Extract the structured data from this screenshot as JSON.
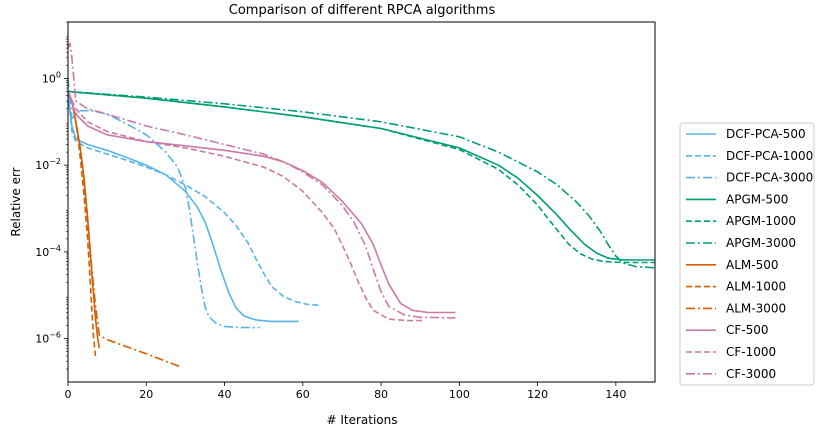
{
  "chart_data": {
    "type": "line",
    "title": "Comparison of different RPCA algorithms",
    "xlabel": "# Iterations",
    "ylabel": "Relative err",
    "xlim": [
      0,
      150
    ],
    "ylim": [
      1e-07,
      20
    ],
    "yscale": "log",
    "x_ticks": [
      0,
      20,
      40,
      60,
      80,
      100,
      120,
      140
    ],
    "y_ticks": [
      1,
      0.01,
      0.0001,
      1e-06
    ],
    "y_tick_labels": [
      "10^0",
      "10^-2",
      "10^-4",
      "10^-6"
    ],
    "grid": false,
    "legend_position": "outside-right",
    "series": [
      {
        "name": "DCF-PCA-500",
        "color": "#56B4E9",
        "dash": "solid",
        "x": [
          0,
          1,
          2,
          5,
          10,
          15,
          20,
          25,
          30,
          33,
          35,
          37,
          39,
          41,
          43,
          45,
          48,
          52,
          59
        ],
        "y": [
          0.4,
          0.08,
          0.04,
          0.03,
          0.022,
          0.015,
          0.01,
          0.006,
          0.0025,
          0.0011,
          0.0005,
          0.00015,
          4e-05,
          1.2e-05,
          5e-06,
          3.3e-06,
          2.7e-06,
          2.5e-06,
          2.5e-06
        ]
      },
      {
        "name": "DCF-PCA-1000",
        "color": "#56B4E9",
        "dash": "dashed",
        "x": [
          0,
          1,
          2,
          5,
          10,
          15,
          20,
          25,
          30,
          35,
          40,
          43,
          46,
          48,
          50,
          52,
          55,
          58,
          61,
          64
        ],
        "y": [
          0.5,
          0.06,
          0.035,
          0.025,
          0.018,
          0.013,
          0.009,
          0.006,
          0.0035,
          0.0019,
          0.0008,
          0.0004,
          0.00016,
          7e-05,
          3.2e-05,
          1.6e-05,
          9.5e-06,
          7.2e-06,
          6.2e-06,
          5.9e-06
        ]
      },
      {
        "name": "DCF-PCA-3000",
        "color": "#56B4E9",
        "dash": "dashdot",
        "x": [
          0,
          1,
          3,
          6,
          10,
          15,
          20,
          25,
          28,
          30,
          31,
          32,
          33,
          34,
          35,
          36,
          38,
          40,
          44,
          49
        ],
        "y": [
          1.0,
          0.12,
          0.18,
          0.18,
          0.15,
          0.09,
          0.05,
          0.02,
          0.009,
          0.003,
          0.001,
          0.00025,
          6e-05,
          1.6e-05,
          5.5e-06,
          3.2e-06,
          2.2e-06,
          1.9e-06,
          1.8e-06,
          1.8e-06
        ]
      },
      {
        "name": "APGM-500",
        "color": "#009E73",
        "dash": "solid",
        "x": [
          0,
          20,
          40,
          60,
          80,
          100,
          110,
          115,
          120,
          125,
          128,
          132,
          135,
          138,
          141,
          145,
          150
        ],
        "y": [
          0.5,
          0.35,
          0.22,
          0.13,
          0.07,
          0.025,
          0.01,
          0.005,
          0.002,
          0.0007,
          0.00035,
          0.00015,
          9.5e-05,
          7.2e-05,
          6.6e-05,
          6.5e-05,
          6.5e-05
        ]
      },
      {
        "name": "APGM-1000",
        "color": "#009E73",
        "dash": "dashed",
        "x": [
          0,
          20,
          40,
          60,
          80,
          100,
          110,
          115,
          120,
          122,
          125,
          128,
          131,
          134,
          137,
          140,
          145,
          150
        ],
        "y": [
          0.5,
          0.35,
          0.22,
          0.13,
          0.07,
          0.023,
          0.008,
          0.0035,
          0.0012,
          0.0007,
          0.00032,
          0.00015,
          9e-05,
          6.8e-05,
          6e-05,
          5.8e-05,
          5.7e-05,
          5.7e-05
        ]
      },
      {
        "name": "APGM-3000",
        "color": "#009E73",
        "dash": "dashdot",
        "x": [
          0,
          20,
          40,
          60,
          80,
          100,
          110,
          120,
          125,
          130,
          133,
          136,
          138,
          140,
          142,
          145,
          150
        ],
        "y": [
          0.5,
          0.37,
          0.26,
          0.17,
          0.1,
          0.045,
          0.02,
          0.007,
          0.0035,
          0.0014,
          0.0007,
          0.0003,
          0.00015,
          8e-05,
          5.5e-05,
          4.6e-05,
          4.3e-05
        ]
      },
      {
        "name": "ALM-500",
        "color": "#D55E00",
        "dash": "solid",
        "x": [
          0,
          1,
          2,
          3,
          4,
          5,
          6,
          7,
          7.5,
          8
        ],
        "y": [
          0.5,
          0.3,
          0.1,
          0.03,
          0.006,
          0.0006,
          4e-05,
          3e-06,
          1.2e-06,
          6e-07
        ]
      },
      {
        "name": "ALM-1000",
        "color": "#D55E00",
        "dash": "dashed",
        "x": [
          0,
          1,
          2,
          3,
          4,
          5,
          5.5,
          6,
          6.5,
          7
        ],
        "y": [
          0.5,
          0.3,
          0.1,
          0.02,
          0.0025,
          0.0002,
          4e-05,
          6e-06,
          1.2e-06,
          4e-07
        ]
      },
      {
        "name": "ALM-3000",
        "color": "#D55E00",
        "dash": "dashdot",
        "x": [
          0,
          1,
          2,
          3,
          4,
          5,
          6,
          7,
          8,
          10,
          15,
          20,
          25,
          29
        ],
        "y": [
          0.5,
          0.3,
          0.1,
          0.03,
          0.006,
          0.0006,
          5e-05,
          6e-06,
          1.2e-06,
          9.5e-07,
          6.5e-07,
          4.5e-07,
          3e-07,
          2.2e-07
        ]
      },
      {
        "name": "CF-500",
        "color": "#CC79A7",
        "dash": "solid",
        "x": [
          0,
          2,
          5,
          10,
          20,
          30,
          40,
          50,
          55,
          60,
          65,
          70,
          75,
          78,
          80,
          82,
          85,
          88,
          92,
          99
        ],
        "y": [
          0.5,
          0.15,
          0.08,
          0.05,
          0.035,
          0.028,
          0.022,
          0.016,
          0.012,
          0.0075,
          0.004,
          0.0015,
          0.00045,
          0.00015,
          5e-05,
          1.8e-05,
          6.5e-06,
          4.5e-06,
          4e-06,
          4e-06
        ]
      },
      {
        "name": "CF-1000",
        "color": "#CC79A7",
        "dash": "dashed",
        "x": [
          0,
          2,
          5,
          10,
          20,
          30,
          40,
          50,
          55,
          60,
          65,
          68,
          70,
          72,
          74,
          76,
          78,
          82,
          87,
          91
        ],
        "y": [
          0.5,
          0.2,
          0.1,
          0.06,
          0.035,
          0.025,
          0.016,
          0.009,
          0.0055,
          0.0025,
          0.0008,
          0.00035,
          0.00015,
          6e-05,
          2.2e-05,
          9e-06,
          4.5e-06,
          2.8e-06,
          2.6e-06,
          2.6e-06
        ]
      },
      {
        "name": "CF-3000",
        "color": "#CC79A7",
        "dash": "dashdot",
        "x": [
          0,
          0.5,
          1,
          2,
          5,
          10,
          20,
          30,
          40,
          50,
          55,
          60,
          65,
          70,
          73,
          76,
          78,
          80,
          82,
          86,
          90,
          99
        ],
        "y": [
          5.0,
          6.5,
          3.0,
          0.3,
          0.2,
          0.15,
          0.08,
          0.05,
          0.03,
          0.018,
          0.012,
          0.007,
          0.0035,
          0.0012,
          0.0005,
          0.00014,
          4e-05,
          1.2e-05,
          5.5e-06,
          3.5e-06,
          3.1e-06,
          3e-06
        ]
      }
    ]
  }
}
